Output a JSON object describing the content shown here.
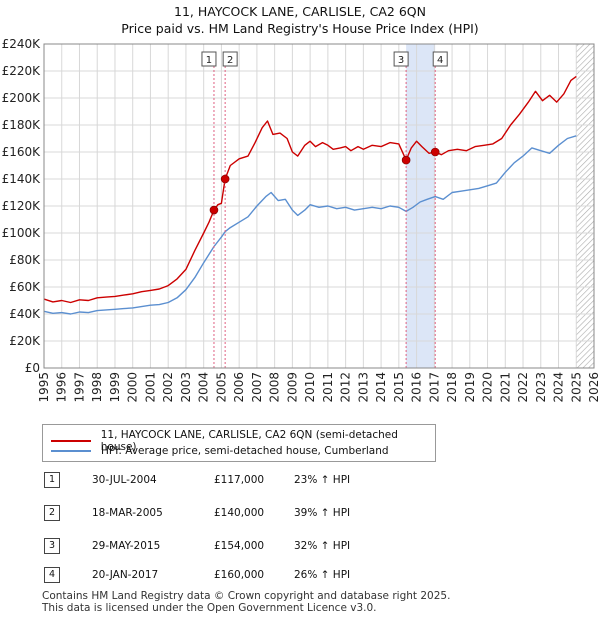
{
  "colors": {
    "price_line": "#cc0000",
    "hpi_line": "#5b8fd0",
    "shade": "#dce6f7",
    "marker_line": "#e06080"
  },
  "chart_data": {
    "type": "line",
    "title": "11, HAYCOCK LANE, CARLISLE, CA2 6QN",
    "subtitle": "Price paid vs. HM Land Registry's House Price Index (HPI)",
    "xlim": [
      1995,
      2026
    ],
    "ylim": [
      0,
      240000
    ],
    "x_ticks": [
      "1995",
      "1996",
      "1997",
      "1998",
      "1999",
      "2000",
      "2001",
      "2002",
      "2003",
      "2004",
      "2005",
      "2006",
      "2007",
      "2008",
      "2009",
      "2010",
      "2011",
      "2012",
      "2013",
      "2014",
      "2015",
      "2016",
      "2017",
      "2018",
      "2019",
      "2020",
      "2021",
      "2022",
      "2023",
      "2024",
      "2025",
      "2026"
    ],
    "y_ticks": [
      {
        "value": 0,
        "label": "£0"
      },
      {
        "value": 20000,
        "label": "£20K"
      },
      {
        "value": 40000,
        "label": "£40K"
      },
      {
        "value": 60000,
        "label": "£60K"
      },
      {
        "value": 80000,
        "label": "£80K"
      },
      {
        "value": 100000,
        "label": "£100K"
      },
      {
        "value": 120000,
        "label": "£120K"
      },
      {
        "value": 140000,
        "label": "£140K"
      },
      {
        "value": 160000,
        "label": "£160K"
      },
      {
        "value": 180000,
        "label": "£180K"
      },
      {
        "value": 200000,
        "label": "£200K"
      },
      {
        "value": 220000,
        "label": "£220K"
      },
      {
        "value": 240000,
        "label": "£240K"
      }
    ],
    "grid": true,
    "hatched_after": 2025.0,
    "shaded_span": [
      2015.41,
      2017.05
    ],
    "series": [
      {
        "name": "11, HAYCOCK LANE, CARLISLE, CA2 6QN (semi-detached house)",
        "color": "#cc0000",
        "points": [
          [
            1995.0,
            51000
          ],
          [
            1995.5,
            49000
          ],
          [
            1996.0,
            50000
          ],
          [
            1996.5,
            48500
          ],
          [
            1997.0,
            50500
          ],
          [
            1997.5,
            50000
          ],
          [
            1998.0,
            52000
          ],
          [
            1998.5,
            52500
          ],
          [
            1999.0,
            53000
          ],
          [
            1999.5,
            54000
          ],
          [
            2000.0,
            55000
          ],
          [
            2000.5,
            56500
          ],
          [
            2001.0,
            57500
          ],
          [
            2001.5,
            58500
          ],
          [
            2002.0,
            61000
          ],
          [
            2002.5,
            66000
          ],
          [
            2003.0,
            73000
          ],
          [
            2003.5,
            87000
          ],
          [
            2004.0,
            100000
          ],
          [
            2004.3,
            108000
          ],
          [
            2004.58,
            117000
          ],
          [
            2004.8,
            121000
          ],
          [
            2005.0,
            122000
          ],
          [
            2005.21,
            140000
          ],
          [
            2005.5,
            150000
          ],
          [
            2006.0,
            155000
          ],
          [
            2006.5,
            157000
          ],
          [
            2006.9,
            167000
          ],
          [
            2007.3,
            178000
          ],
          [
            2007.6,
            183000
          ],
          [
            2007.9,
            173000
          ],
          [
            2008.3,
            174000
          ],
          [
            2008.7,
            170000
          ],
          [
            2009.0,
            160000
          ],
          [
            2009.3,
            157000
          ],
          [
            2009.7,
            165000
          ],
          [
            2010.0,
            168000
          ],
          [
            2010.3,
            164000
          ],
          [
            2010.7,
            167000
          ],
          [
            2011.0,
            165000
          ],
          [
            2011.3,
            162000
          ],
          [
            2011.7,
            163000
          ],
          [
            2012.0,
            164000
          ],
          [
            2012.3,
            161000
          ],
          [
            2012.7,
            164000
          ],
          [
            2013.0,
            162000
          ],
          [
            2013.5,
            165000
          ],
          [
            2014.0,
            164000
          ],
          [
            2014.5,
            167000
          ],
          [
            2015.0,
            166000
          ],
          [
            2015.41,
            154000
          ],
          [
            2015.7,
            163000
          ],
          [
            2016.0,
            168000
          ],
          [
            2016.3,
            164000
          ],
          [
            2016.7,
            159000
          ],
          [
            2017.05,
            160000
          ],
          [
            2017.4,
            158000
          ],
          [
            2017.8,
            161000
          ],
          [
            2018.3,
            162000
          ],
          [
            2018.8,
            161000
          ],
          [
            2019.3,
            164000
          ],
          [
            2019.8,
            165000
          ],
          [
            2020.3,
            166000
          ],
          [
            2020.8,
            170000
          ],
          [
            2021.3,
            180000
          ],
          [
            2021.8,
            188000
          ],
          [
            2022.3,
            197000
          ],
          [
            2022.7,
            205000
          ],
          [
            2023.1,
            198000
          ],
          [
            2023.5,
            202000
          ],
          [
            2023.9,
            197000
          ],
          [
            2024.3,
            203000
          ],
          [
            2024.7,
            213000
          ],
          [
            2025.0,
            216000
          ]
        ]
      },
      {
        "name": "HPI: Average price, semi-detached house, Cumberland",
        "color": "#5b8fd0",
        "points": [
          [
            1995.0,
            42000
          ],
          [
            1995.5,
            40500
          ],
          [
            1996.0,
            41000
          ],
          [
            1996.5,
            40000
          ],
          [
            1997.0,
            41500
          ],
          [
            1997.5,
            41000
          ],
          [
            1998.0,
            42500
          ],
          [
            1998.5,
            43000
          ],
          [
            1999.0,
            43500
          ],
          [
            1999.5,
            44000
          ],
          [
            2000.0,
            44500
          ],
          [
            2000.5,
            45500
          ],
          [
            2001.0,
            46500
          ],
          [
            2001.5,
            47000
          ],
          [
            2002.0,
            48500
          ],
          [
            2002.5,
            52000
          ],
          [
            2003.0,
            58000
          ],
          [
            2003.5,
            67000
          ],
          [
            2004.0,
            78000
          ],
          [
            2004.58,
            90000
          ],
          [
            2005.0,
            97000
          ],
          [
            2005.21,
            101000
          ],
          [
            2005.5,
            104000
          ],
          [
            2006.0,
            108000
          ],
          [
            2006.5,
            112000
          ],
          [
            2007.0,
            120000
          ],
          [
            2007.5,
            127000
          ],
          [
            2007.8,
            130000
          ],
          [
            2008.2,
            124000
          ],
          [
            2008.6,
            125000
          ],
          [
            2009.0,
            117000
          ],
          [
            2009.3,
            113000
          ],
          [
            2009.7,
            117000
          ],
          [
            2010.0,
            121000
          ],
          [
            2010.5,
            119000
          ],
          [
            2011.0,
            120000
          ],
          [
            2011.5,
            118000
          ],
          [
            2012.0,
            119000
          ],
          [
            2012.5,
            117000
          ],
          [
            2013.0,
            118000
          ],
          [
            2013.5,
            119000
          ],
          [
            2014.0,
            118000
          ],
          [
            2014.5,
            120000
          ],
          [
            2015.0,
            119000
          ],
          [
            2015.41,
            116000
          ],
          [
            2015.8,
            119000
          ],
          [
            2016.2,
            123000
          ],
          [
            2016.6,
            125000
          ],
          [
            2017.05,
            127000
          ],
          [
            2017.5,
            125000
          ],
          [
            2018.0,
            130000
          ],
          [
            2018.5,
            131000
          ],
          [
            2019.0,
            132000
          ],
          [
            2019.5,
            133000
          ],
          [
            2020.0,
            135000
          ],
          [
            2020.5,
            137000
          ],
          [
            2021.0,
            145000
          ],
          [
            2021.5,
            152000
          ],
          [
            2022.0,
            157000
          ],
          [
            2022.5,
            163000
          ],
          [
            2023.0,
            161000
          ],
          [
            2023.5,
            159000
          ],
          [
            2024.0,
            165000
          ],
          [
            2024.5,
            170000
          ],
          [
            2025.0,
            172000
          ]
        ]
      }
    ],
    "sales": [
      {
        "id": "1",
        "x": 2004.58,
        "value": 117000
      },
      {
        "id": "2",
        "x": 2005.21,
        "value": 140000
      },
      {
        "id": "3",
        "x": 2015.41,
        "value": 154000
      },
      {
        "id": "4",
        "x": 2017.05,
        "value": 160000
      }
    ]
  },
  "legend": {
    "price_label": "11, HAYCOCK LANE, CARLISLE, CA2 6QN (semi-detached house)",
    "hpi_label": "HPI: Average price, semi-detached house, Cumberland"
  },
  "sales_table": [
    {
      "num": "1",
      "date": "30-JUL-2004",
      "price": "£117,000",
      "hpi": "23% ↑ HPI"
    },
    {
      "num": "2",
      "date": "18-MAR-2005",
      "price": "£140,000",
      "hpi": "39% ↑ HPI"
    },
    {
      "num": "3",
      "date": "29-MAY-2015",
      "price": "£154,000",
      "hpi": "32% ↑ HPI"
    },
    {
      "num": "4",
      "date": "20-JAN-2017",
      "price": "£160,000",
      "hpi": "26% ↑ HPI"
    }
  ],
  "footer": {
    "line1": "Contains HM Land Registry data © Crown copyright and database right 2025.",
    "line2": "This data is licensed under the Open Government Licence v3.0."
  }
}
